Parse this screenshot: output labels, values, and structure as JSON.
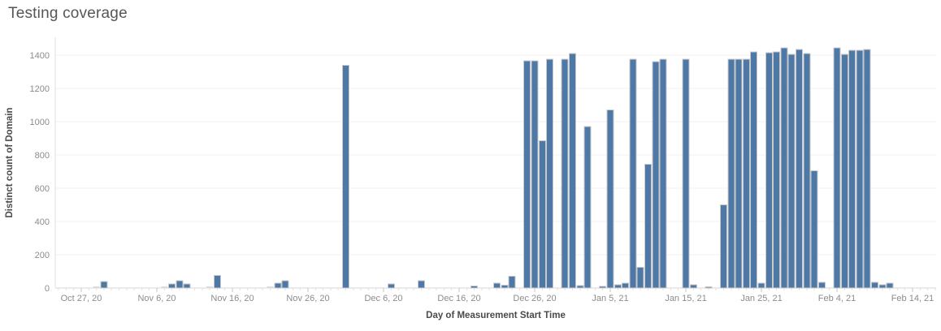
{
  "title": "Testing coverage",
  "chart_data": {
    "type": "bar",
    "title": "Testing coverage",
    "xlabel": "Day of Measurement Start Time",
    "ylabel": "Distinct count of Domain",
    "x_tick_labels": [
      "Oct 27, 20",
      "Nov 6, 20",
      "Nov 16, 20",
      "Nov 26, 20",
      "Dec 6, 20",
      "Dec 16, 20",
      "Dec 26, 20",
      "Jan 5, 21",
      "Jan 15, 21",
      "Jan 25, 21",
      "Feb 4, 21",
      "Feb 14, 21"
    ],
    "x_tick_interval_days": 10,
    "y_ticks": [
      0,
      200,
      400,
      600,
      800,
      1000,
      1200,
      1400
    ],
    "ylim": [
      0,
      1400
    ],
    "grid": "horizontal",
    "bar_color": "#4e79a7",
    "bar_border_color": "#c9c9c9",
    "faint_bar_color": "#dcdcdc",
    "axis_line_color": "#e0e0e0",
    "gridline_color": "#f0f0f0",
    "bars": [
      {
        "date": "Oct 29, 20",
        "day": 2,
        "value": 5,
        "faint": true
      },
      {
        "date": "Oct 30, 20",
        "day": 3,
        "value": 40
      },
      {
        "date": "Nov 7, 20",
        "day": 11,
        "value": 5,
        "faint": true
      },
      {
        "date": "Nov 8, 20",
        "day": 12,
        "value": 25
      },
      {
        "date": "Nov 9, 20",
        "day": 13,
        "value": 45
      },
      {
        "date": "Nov 10, 20",
        "day": 14,
        "value": 25
      },
      {
        "date": "Nov 13, 20",
        "day": 17,
        "value": 5,
        "faint": true
      },
      {
        "date": "Nov 14, 20",
        "day": 18,
        "value": 75
      },
      {
        "date": "Nov 21, 20",
        "day": 25,
        "value": 5,
        "faint": true
      },
      {
        "date": "Nov 22, 20",
        "day": 26,
        "value": 30
      },
      {
        "date": "Nov 23, 20",
        "day": 27,
        "value": 45
      },
      {
        "date": "Dec 1, 20",
        "day": 35,
        "value": 1340
      },
      {
        "date": "Dec 7, 20",
        "day": 41,
        "value": 25
      },
      {
        "date": "Dec 11, 20",
        "day": 45,
        "value": 45
      },
      {
        "date": "Dec 18, 20",
        "day": 52,
        "value": 12
      },
      {
        "date": "Dec 21, 20",
        "day": 55,
        "value": 30
      },
      {
        "date": "Dec 22, 20",
        "day": 56,
        "value": 18
      },
      {
        "date": "Dec 23, 20",
        "day": 57,
        "value": 70
      },
      {
        "date": "Dec 25, 20",
        "day": 59,
        "value": 1365
      },
      {
        "date": "Dec 26, 20",
        "day": 60,
        "value": 1365
      },
      {
        "date": "Dec 27, 20",
        "day": 61,
        "value": 885
      },
      {
        "date": "Dec 28, 20",
        "day": 62,
        "value": 1375
      },
      {
        "date": "Dec 30, 20",
        "day": 64,
        "value": 1375
      },
      {
        "date": "Dec 31, 20",
        "day": 65,
        "value": 1410
      },
      {
        "date": "Jan 1, 21",
        "day": 66,
        "value": 15
      },
      {
        "date": "Jan 2, 21",
        "day": 67,
        "value": 970
      },
      {
        "date": "Jan 4, 21",
        "day": 69,
        "value": 10
      },
      {
        "date": "Jan 5, 21",
        "day": 70,
        "value": 1070
      },
      {
        "date": "Jan 6, 21",
        "day": 71,
        "value": 20
      },
      {
        "date": "Jan 7, 21",
        "day": 72,
        "value": 30
      },
      {
        "date": "Jan 8, 21",
        "day": 73,
        "value": 1375
      },
      {
        "date": "Jan 9, 21",
        "day": 74,
        "value": 125
      },
      {
        "date": "Jan 10, 21",
        "day": 75,
        "value": 745
      },
      {
        "date": "Jan 11, 21",
        "day": 76,
        "value": 1360
      },
      {
        "date": "Jan 12, 21",
        "day": 77,
        "value": 1375
      },
      {
        "date": "Jan 15, 21",
        "day": 80,
        "value": 1375
      },
      {
        "date": "Jan 16, 21",
        "day": 81,
        "value": 20
      },
      {
        "date": "Jan 18, 21",
        "day": 83,
        "value": 8
      },
      {
        "date": "Jan 20, 21",
        "day": 85,
        "value": 500
      },
      {
        "date": "Jan 21, 21",
        "day": 86,
        "value": 1375
      },
      {
        "date": "Jan 22, 21",
        "day": 87,
        "value": 1375
      },
      {
        "date": "Jan 23, 21",
        "day": 88,
        "value": 1375
      },
      {
        "date": "Jan 24, 21",
        "day": 89,
        "value": 1420
      },
      {
        "date": "Jan 25, 21",
        "day": 90,
        "value": 30
      },
      {
        "date": "Jan 26, 21",
        "day": 91,
        "value": 1415
      },
      {
        "date": "Jan 27, 21",
        "day": 92,
        "value": 1420
      },
      {
        "date": "Jan 28, 21",
        "day": 93,
        "value": 1445
      },
      {
        "date": "Jan 29, 21",
        "day": 94,
        "value": 1405
      },
      {
        "date": "Jan 30, 21",
        "day": 95,
        "value": 1435
      },
      {
        "date": "Jan 31, 21",
        "day": 96,
        "value": 1410
      },
      {
        "date": "Feb 1, 21",
        "day": 97,
        "value": 705
      },
      {
        "date": "Feb 2, 21",
        "day": 98,
        "value": 35
      },
      {
        "date": "Feb 4, 21",
        "day": 100,
        "value": 1445
      },
      {
        "date": "Feb 5, 21",
        "day": 101,
        "value": 1405
      },
      {
        "date": "Feb 6, 21",
        "day": 102,
        "value": 1430
      },
      {
        "date": "Feb 7, 21",
        "day": 103,
        "value": 1430
      },
      {
        "date": "Feb 8, 21",
        "day": 104,
        "value": 1435
      },
      {
        "date": "Feb 9, 21",
        "day": 105,
        "value": 35
      },
      {
        "date": "Feb 10, 21",
        "day": 106,
        "value": 20
      },
      {
        "date": "Feb 11, 21",
        "day": 107,
        "value": 30
      }
    ]
  }
}
